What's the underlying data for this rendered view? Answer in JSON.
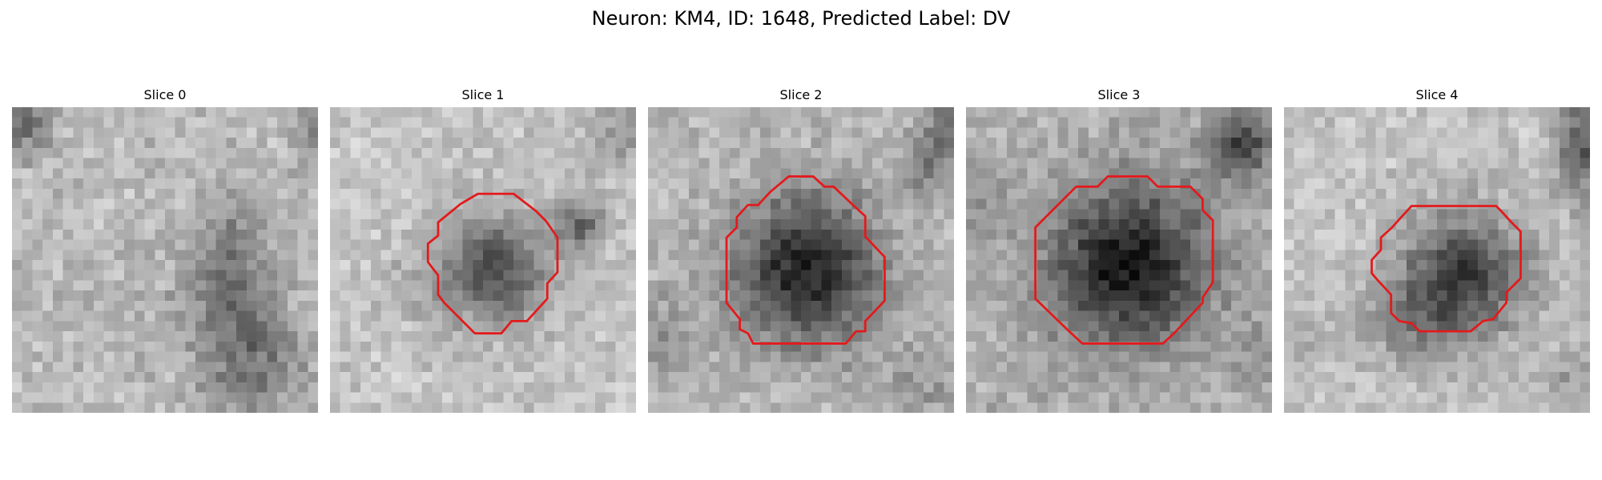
{
  "figure": {
    "title": "Neuron: KM4, ID: 1648, Predicted Label: DV",
    "outline_color": "#e31a1c"
  },
  "slices": [
    {
      "title": "Slice 0",
      "has_outline": false
    },
    {
      "title": "Slice 1",
      "has_outline": true
    },
    {
      "title": "Slice 2",
      "has_outline": true
    },
    {
      "title": "Slice 3",
      "has_outline": true
    },
    {
      "title": "Slice 4",
      "has_outline": true
    }
  ]
}
